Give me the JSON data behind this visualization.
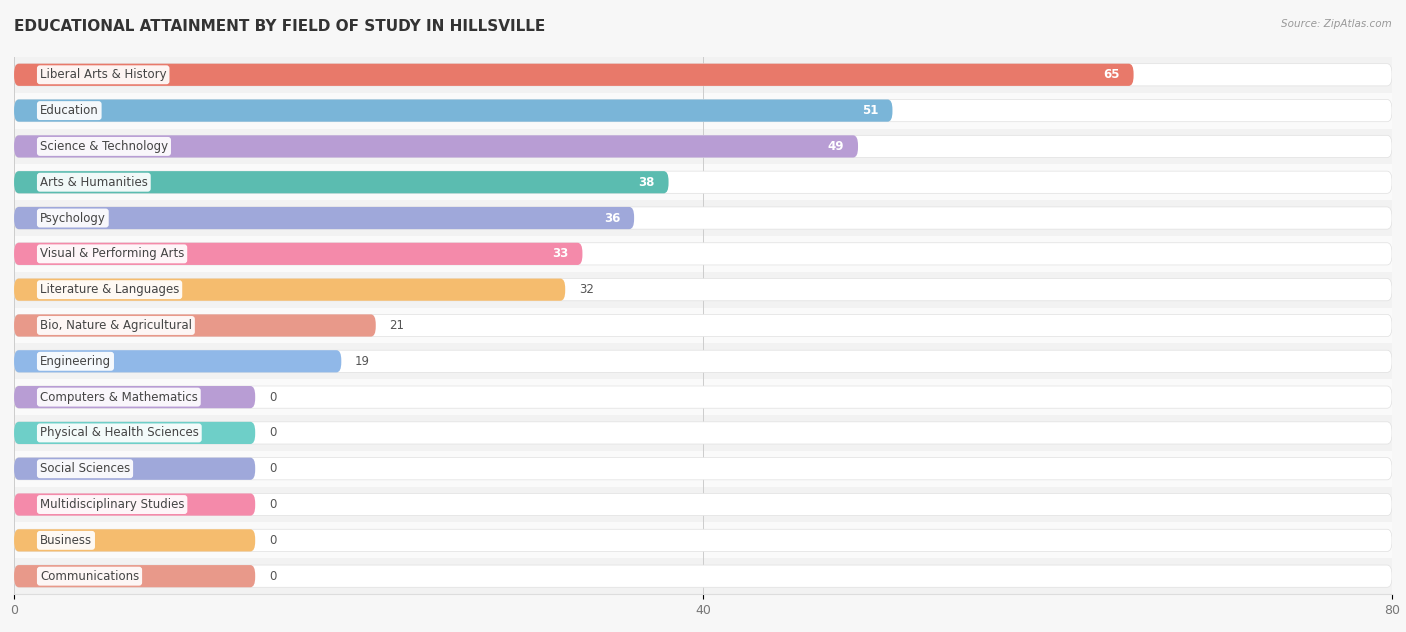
{
  "title": "EDUCATIONAL ATTAINMENT BY FIELD OF STUDY IN HILLSVILLE",
  "source": "Source: ZipAtlas.com",
  "categories": [
    "Liberal Arts & History",
    "Education",
    "Science & Technology",
    "Arts & Humanities",
    "Psychology",
    "Visual & Performing Arts",
    "Literature & Languages",
    "Bio, Nature & Agricultural",
    "Engineering",
    "Computers & Mathematics",
    "Physical & Health Sciences",
    "Social Sciences",
    "Multidisciplinary Studies",
    "Business",
    "Communications"
  ],
  "values": [
    65,
    51,
    49,
    38,
    36,
    33,
    32,
    21,
    19,
    0,
    0,
    0,
    0,
    0,
    0
  ],
  "bar_colors": [
    "#e8796a",
    "#7ab5d8",
    "#b89dd4",
    "#5bbcb0",
    "#9fa8da",
    "#f48aaa",
    "#f5bc6e",
    "#e8998a",
    "#90b8e8",
    "#b89dd4",
    "#6ecfc8",
    "#9fa8da",
    "#f48aaa",
    "#f5bc6e",
    "#e8998a"
  ],
  "xlim": [
    0,
    80
  ],
  "xticks": [
    0,
    40,
    80
  ],
  "background_color": "#f7f7f7",
  "bar_bg_color": "#ffffff",
  "row_alt_color": "#f0f0f0",
  "title_fontsize": 11,
  "label_fontsize": 8.5,
  "value_fontsize": 8.5,
  "value_inside_threshold": 33,
  "zero_bar_width": 14
}
